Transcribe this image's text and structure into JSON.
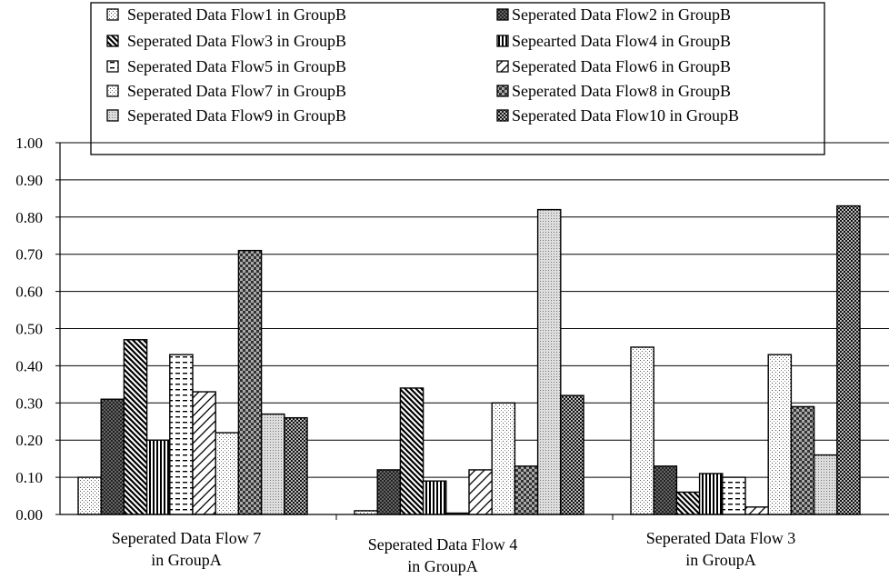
{
  "chart_data": {
    "type": "bar",
    "categories": [
      [
        "Seperated Data Flow 7",
        "in GroupA"
      ],
      [
        "Seperated Data Flow 4",
        "in GroupA"
      ],
      [
        "Seperated Data Flow 3",
        "in GroupA"
      ]
    ],
    "ylim": [
      0,
      1.0
    ],
    "yticks": [
      "0.00",
      "0.10",
      "0.20",
      "0.30",
      "0.40",
      "0.50",
      "0.60",
      "0.70",
      "0.80",
      "0.90",
      "1.00"
    ],
    "grid": true,
    "legend_position": "top",
    "series": [
      {
        "name": "Seperated Data Flow1 in GroupB",
        "values": [
          0.1,
          0.01,
          0.45
        ]
      },
      {
        "name": "Seperated Data Flow2 in GroupB",
        "values": [
          0.31,
          0.12,
          0.13
        ]
      },
      {
        "name": "Seperated Data Flow3 in GroupB",
        "values": [
          0.47,
          0.34,
          0.06
        ]
      },
      {
        "name": "Sepearted Data Flow4 in GroupB",
        "values": [
          0.2,
          0.09,
          0.11
        ]
      },
      {
        "name": "Seperated Data Flow5 in GroupB",
        "values": [
          0.43,
          0.0,
          0.1
        ]
      },
      {
        "name": "Seperated Data Flow6 in GroupB",
        "values": [
          0.33,
          0.12,
          0.02
        ]
      },
      {
        "name": "Seperated Data Flow7 in GroupB",
        "values": [
          0.22,
          0.3,
          0.43
        ]
      },
      {
        "name": "Seperated Data Flow8 in GroupB",
        "values": [
          0.71,
          0.13,
          0.29
        ]
      },
      {
        "name": "Seperated Data Flow9 in GroupB",
        "values": [
          0.27,
          0.82,
          0.16
        ]
      },
      {
        "name": "Seperated Data Flow10 in GroupB",
        "values": [
          0.26,
          0.32,
          0.83
        ]
      }
    ]
  }
}
